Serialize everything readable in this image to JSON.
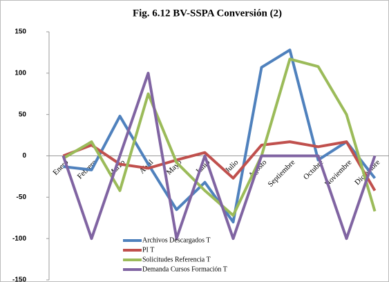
{
  "chart_data": {
    "type": "line",
    "title": "Fig. 6.12 BV-SSPA Conversión (2)",
    "categories": [
      "Enero",
      "Febrero",
      "Marzo",
      "Abril",
      "Mayo",
      "Junio",
      "Julio",
      "Agosto",
      "Septiembre",
      "Octubre",
      "Noviembre",
      "Diciembre"
    ],
    "series": [
      {
        "name": "Archivos Descargados T",
        "color": "#4f81bd",
        "values": [
          -13,
          -17,
          48,
          -10,
          -65,
          -32,
          -80,
          107,
          128,
          -5,
          17,
          -27
        ]
      },
      {
        "name": "PI T",
        "color": "#c0504d",
        "values": [
          0,
          13,
          -10,
          -15,
          -5,
          4,
          -27,
          13,
          17,
          11,
          17,
          -42
        ]
      },
      {
        "name": "Solicitudes Referencia T",
        "color": "#9bbb59",
        "values": [
          -3,
          17,
          -42,
          75,
          -8,
          -42,
          -72,
          0,
          117,
          108,
          50,
          -67
        ]
      },
      {
        "name": "Demanda Cursos Formación T",
        "color": "#8064a2",
        "values": [
          0,
          -100,
          0,
          100,
          -100,
          0,
          -100,
          0,
          0,
          0,
          -100,
          0
        ]
      }
    ],
    "ylim": [
      -150,
      150
    ],
    "yticks": [
      -150,
      -100,
      -50,
      0,
      50,
      100,
      150
    ],
    "grid": false,
    "legend": "bottom"
  }
}
